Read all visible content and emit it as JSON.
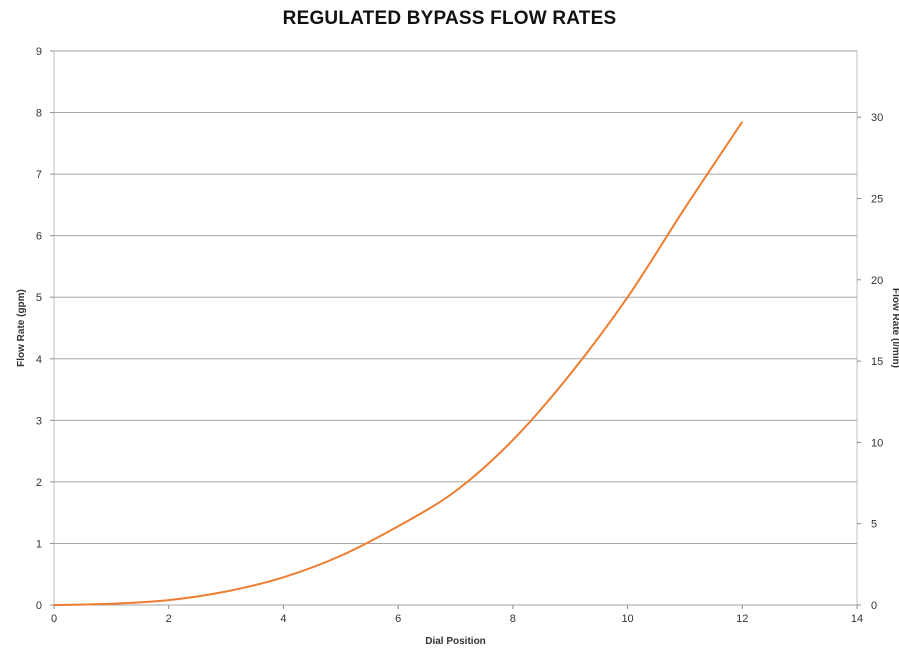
{
  "chart_data": {
    "type": "line",
    "title": "REGULATED BYPASS FLOW RATES",
    "xlabel": "Dial Position",
    "ylabel": "Flow Rate (gpm)",
    "y2label": "Flow Rate (l/min)",
    "xlim": [
      0,
      14
    ],
    "ylim": [
      0,
      9
    ],
    "y2lim": [
      0,
      34.07
    ],
    "x_ticks": [
      "0",
      "2",
      "4",
      "6",
      "8",
      "10",
      "12",
      "14"
    ],
    "y_ticks": [
      "0",
      "1",
      "2",
      "3",
      "4",
      "5",
      "6",
      "7",
      "8",
      "9"
    ],
    "y2_ticks": [
      "0",
      "5",
      "10",
      "15",
      "20",
      "25",
      "30"
    ],
    "grid": "horizontal",
    "series_color": "#ed7d31",
    "series": [
      {
        "x": [
          0,
          1,
          2,
          3,
          4,
          5,
          6,
          7,
          8,
          9,
          10,
          11,
          12
        ],
        "values": [
          0.0,
          0.02,
          0.08,
          0.22,
          0.45,
          0.8,
          1.28,
          1.85,
          2.68,
          3.75,
          5.0,
          6.45,
          7.85
        ]
      }
    ]
  }
}
